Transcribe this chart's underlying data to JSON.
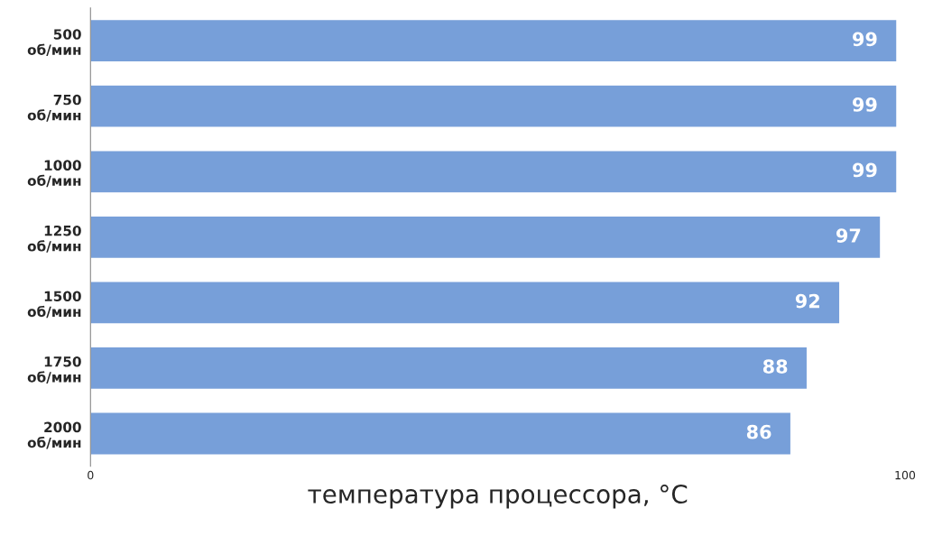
{
  "chart_data": {
    "type": "bar",
    "orientation": "horizontal",
    "xlabel": "температура процессора, °C",
    "categories": [
      "500\nоб/мин",
      "750\nоб/мин",
      "1000\nоб/мин",
      "1250\nоб/мин",
      "1500\nоб/мин",
      "1750\nоб/мин",
      "2000\nоб/мин"
    ],
    "values": [
      99,
      99,
      99,
      97,
      92,
      88,
      86
    ],
    "color": "#779fd9",
    "xlim": [
      0,
      100
    ],
    "xticks": [
      0,
      100
    ],
    "data_labels": true,
    "grid": false,
    "legend": false
  }
}
